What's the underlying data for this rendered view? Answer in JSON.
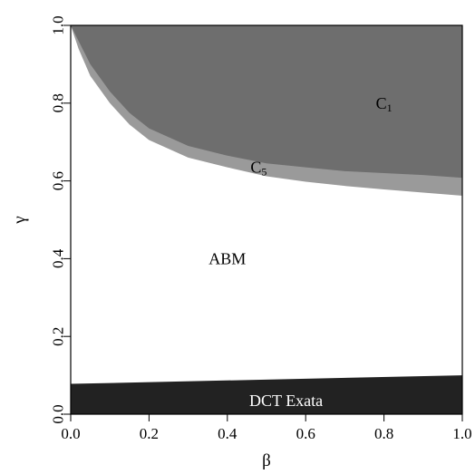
{
  "chart_data": {
    "type": "area",
    "xlabel": "β",
    "ylabel": "γ",
    "xlim": [
      0,
      1
    ],
    "ylim": [
      0,
      1
    ],
    "x_ticks": [
      "0.0",
      "0.2",
      "0.4",
      "0.6",
      "0.8",
      "1.0"
    ],
    "y_ticks": [
      "0.0",
      "0.2",
      "0.4",
      "0.6",
      "0.8",
      "1.0"
    ],
    "grid": false,
    "regions": [
      {
        "name": "C",
        "subscript": "1",
        "color": "#6e6e6e",
        "label_at": [
          0.8,
          0.8
        ],
        "boundary": [
          [
            0.0,
            1.0
          ],
          [
            0.02,
            0.96
          ],
          [
            0.05,
            0.9
          ],
          [
            0.1,
            0.83
          ],
          [
            0.15,
            0.775
          ],
          [
            0.2,
            0.735
          ],
          [
            0.3,
            0.69
          ],
          [
            0.4,
            0.665
          ],
          [
            0.5,
            0.645
          ],
          [
            0.6,
            0.635
          ],
          [
            0.7,
            0.625
          ],
          [
            0.8,
            0.62
          ],
          [
            0.9,
            0.615
          ],
          [
            1.0,
            0.608
          ]
        ]
      },
      {
        "name": "C",
        "subscript": "5",
        "color": "#9a9a9a",
        "label_at": [
          0.48,
          0.635
        ],
        "boundary": [
          [
            0.0,
            1.0
          ],
          [
            0.02,
            0.94
          ],
          [
            0.05,
            0.87
          ],
          [
            0.1,
            0.8
          ],
          [
            0.15,
            0.745
          ],
          [
            0.2,
            0.705
          ],
          [
            0.3,
            0.66
          ],
          [
            0.4,
            0.635
          ],
          [
            0.5,
            0.612
          ],
          [
            0.6,
            0.598
          ],
          [
            0.7,
            0.587
          ],
          [
            0.8,
            0.578
          ],
          [
            0.9,
            0.57
          ],
          [
            1.0,
            0.562
          ]
        ]
      },
      {
        "name": "ABM",
        "subscript": "",
        "color": "#ffffff",
        "label_at": [
          0.4,
          0.4
        ]
      },
      {
        "name": "DCT Exata",
        "subscript": "",
        "color": "#222222",
        "label_at": [
          0.55,
          0.035
        ],
        "boundary": [
          [
            0.0,
            0.078
          ],
          [
            1.0,
            0.1
          ]
        ]
      }
    ]
  }
}
